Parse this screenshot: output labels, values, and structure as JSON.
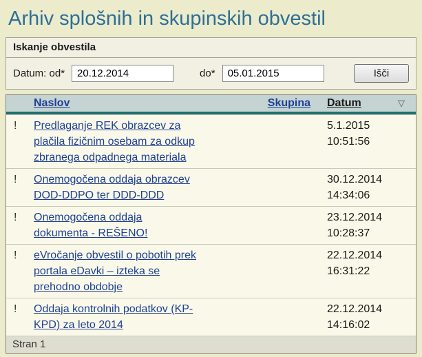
{
  "page": {
    "title": "Arhiv splošnih in skupinskih obvestil"
  },
  "search": {
    "panel_title": "Iskanje obvestila",
    "from_label": "Datum: od*",
    "to_label": "do*",
    "date_from": "20.12.2014",
    "date_to": "05.01.2015",
    "search_button_label": "Išči"
  },
  "table": {
    "headers": {
      "naslov": "Naslov",
      "skupina": "Skupina",
      "datum": "Datum"
    },
    "sort_icon": "▽",
    "rows": [
      {
        "marker": "!",
        "title": "Predlaganje REK obrazcev za plačila fizičnim osebam za odkup zbranega odpadnega materiala",
        "date": "5.1.2015",
        "time": "10:51:56"
      },
      {
        "marker": "!",
        "title": "Onemogočena oddaja obrazcev DOD-DDPO ter DDD-DDD",
        "date": "30.12.2014",
        "time": "14:34:06"
      },
      {
        "marker": "!",
        "title": "Onemogočena oddaja dokumenta - REŠENO!",
        "date": "23.12.2014",
        "time": "10:28:37"
      },
      {
        "marker": "!",
        "title": "eVročanje obvestil o pobotih prek portala eDavki – izteka se prehodno obdobje",
        "date": "22.12.2014",
        "time": "16:31:22"
      },
      {
        "marker": "!",
        "title": "Oddaja kontrolnih podatkov (KP-KPD) za leto 2014",
        "date": "22.12.2014",
        "time": "14:16:02"
      }
    ],
    "footer": "Stran 1"
  },
  "colors": {
    "page-bg": "#ECECCD",
    "title": "#2E6F96",
    "panel-bg": "#F1F0E2",
    "panel-border": "#A5A596",
    "header-bg": "#C5D3D3",
    "accent-teal": "#1E6F70",
    "link": "#1E4094",
    "row-bg": "#FAF9E9",
    "row-divider": "#C9C9BA",
    "footer-bg": "#DEDED0",
    "table-border": "#83837B"
  }
}
